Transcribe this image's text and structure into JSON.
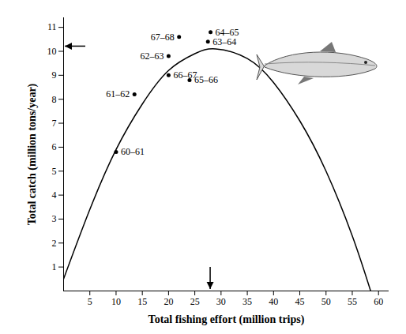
{
  "chart_data": {
    "type": "scatter",
    "x_label": "Total fishing effort (million trips)",
    "y_label": "Total catch (million tons/year)",
    "xlim": [
      0,
      62
    ],
    "ylim": [
      0,
      11.4
    ],
    "xticks": [
      5,
      10,
      15,
      20,
      25,
      30,
      35,
      40,
      45,
      50,
      55,
      60
    ],
    "yticks": [
      1,
      2,
      3,
      4,
      5,
      6,
      7,
      8,
      9,
      10,
      11
    ],
    "grid": false,
    "series": [
      {
        "type": "line",
        "color": "#000000",
        "line_style": "solid",
        "x": [
          0,
          5,
          10,
          15,
          20,
          25,
          29,
          35,
          40,
          45,
          50,
          55,
          58.5
        ],
        "values": [
          0.5,
          3.4,
          5.9,
          7.8,
          9.2,
          9.9,
          10.1,
          9.7,
          8.7,
          7.1,
          5.0,
          2.3,
          0
        ]
      },
      {
        "type": "scatter",
        "color": "#000000",
        "marker": "circle",
        "x": [
          10,
          13.5,
          20,
          27.5,
          28,
          24,
          20,
          22
        ],
        "values": [
          5.8,
          8.2,
          9.8,
          10.4,
          10.8,
          8.8,
          9.0,
          10.6
        ],
        "labels": [
          "60–61",
          "61–62",
          "62–63",
          "63–64",
          "64–65",
          "65–66",
          "66–67",
          "67–68"
        ]
      }
    ],
    "annotations": [
      {
        "axis": "y",
        "value": 10.2
      },
      {
        "axis": "x",
        "value": 28
      }
    ]
  }
}
